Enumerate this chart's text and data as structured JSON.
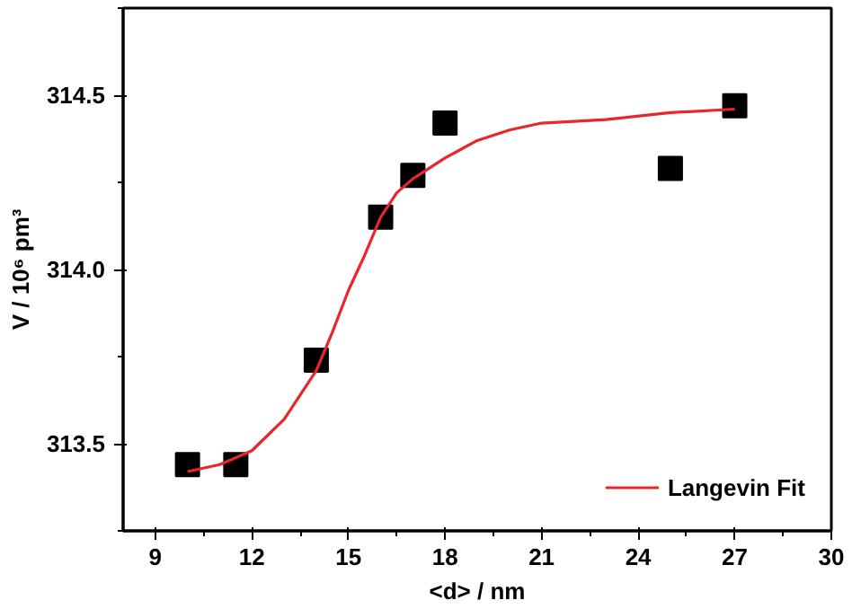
{
  "chart_data": {
    "type": "scatter",
    "xlabel": "<d> / nm",
    "ylabel": "V / 10⁶ pm³",
    "xlim": [
      8,
      30
    ],
    "ylim": [
      313.25,
      314.75
    ],
    "xticks": [
      9,
      12,
      15,
      18,
      21,
      24,
      27,
      30
    ],
    "yticks": [
      {
        "value": 313.5,
        "label": "313.5"
      },
      {
        "value": 314.0,
        "label": "314.0"
      },
      {
        "value": 314.5,
        "label": "314.5"
      }
    ],
    "grid": false,
    "legend": "bottom right",
    "series": [
      {
        "marker": "square",
        "color": "#000000",
        "x": [
          10,
          11.5,
          14,
          16,
          17,
          18,
          25,
          27
        ],
        "values": [
          313.44,
          313.44,
          313.74,
          314.15,
          314.27,
          314.42,
          314.29,
          314.47
        ]
      },
      {
        "type": "line",
        "name": "Langevin Fit",
        "color": "#e8262b",
        "line_style": "solid",
        "x": [
          10,
          11,
          12,
          13,
          14,
          14.5,
          15,
          15.5,
          16,
          16.5,
          17,
          18,
          19,
          20,
          21,
          23,
          25,
          27
        ],
        "values": [
          313.42,
          313.44,
          313.48,
          313.57,
          313.71,
          313.82,
          313.94,
          314.04,
          314.15,
          314.22,
          314.26,
          314.32,
          314.37,
          314.4,
          314.42,
          314.43,
          314.45,
          314.46
        ]
      }
    ]
  }
}
